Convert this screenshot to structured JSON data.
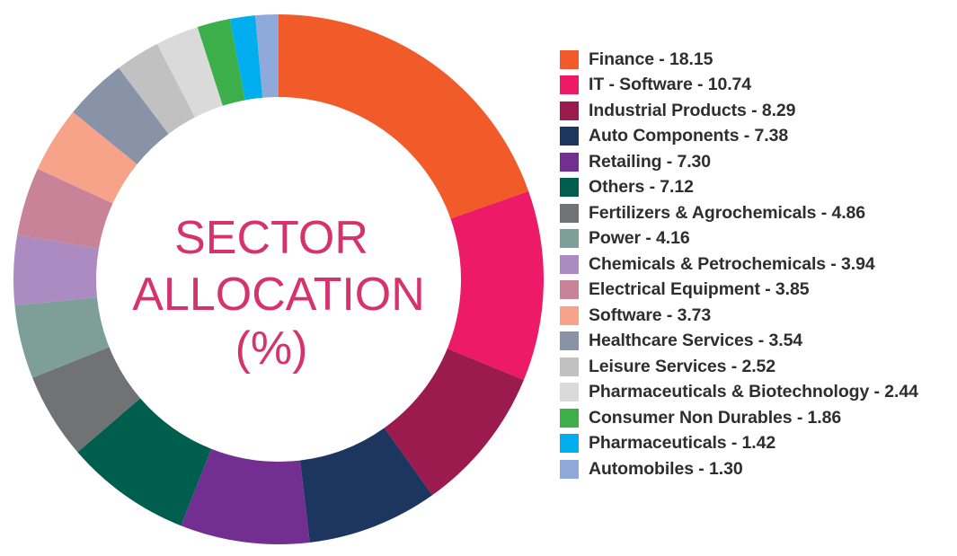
{
  "chart_data": {
    "type": "pie",
    "variant": "donut",
    "title_lines": [
      "SECTOR",
      "ALLOCATION",
      "(%)"
    ],
    "legend_position": "right",
    "series": [
      {
        "name": "Finance",
        "value": 18.15,
        "label": "Finance - 18.15",
        "color": "#f15a29"
      },
      {
        "name": "IT - Software",
        "value": 10.74,
        "label": "IT - Software - 10.74",
        "color": "#ec1a67"
      },
      {
        "name": "Industrial Products",
        "value": 8.29,
        "label": "Industrial Products - 8.29",
        "color": "#9b1b4e"
      },
      {
        "name": "Auto Components",
        "value": 7.38,
        "label": "Auto Components - 7.38",
        "color": "#1c3660"
      },
      {
        "name": "Retailing",
        "value": 7.3,
        "label": "Retailing - 7.30",
        "color": "#732e91"
      },
      {
        "name": "Others",
        "value": 7.12,
        "label": "Others - 7.12",
        "color": "#005e4f"
      },
      {
        "name": "Fertilizers & Agrochemicals",
        "value": 4.86,
        "label": "Fertilizers & Agrochemicals - 4.86",
        "color": "#717274"
      },
      {
        "name": "Power",
        "value": 4.16,
        "label": "Power - 4.16",
        "color": "#7e9f97"
      },
      {
        "name": "Chemicals & Petrochemicals",
        "value": 3.94,
        "label": "Chemicals & Petrochemicals - 3.94",
        "color": "#ab8bc1"
      },
      {
        "name": "Electrical Equipment",
        "value": 3.85,
        "label": "Electrical Equipment - 3.85",
        "color": "#c98399"
      },
      {
        "name": "Software",
        "value": 3.73,
        "label": "Software - 3.73",
        "color": "#f6a389"
      },
      {
        "name": "Healthcare Services",
        "value": 3.54,
        "label": "Healthcare Services - 3.54",
        "color": "#8893a8"
      },
      {
        "name": "Leisure Services",
        "value": 2.52,
        "label": "Leisure Services - 2.52",
        "color": "#c1c1c1"
      },
      {
        "name": "Pharmaceuticals & Biotechnology",
        "value": 2.44,
        "label": "Pharmaceuticals & Biotechnology - 2.44",
        "color": "#dadada"
      },
      {
        "name": "Consumer Non Durables",
        "value": 1.86,
        "label": "Consumer Non Durables - 1.86",
        "color": "#3daf4a"
      },
      {
        "name": "Pharmaceuticals",
        "value": 1.42,
        "label": "Pharmaceuticals - 1.42",
        "color": "#00aeef"
      },
      {
        "name": "Automobiles",
        "value": 1.3,
        "label": "Automobiles - 1.30",
        "color": "#8fa9db"
      }
    ]
  }
}
